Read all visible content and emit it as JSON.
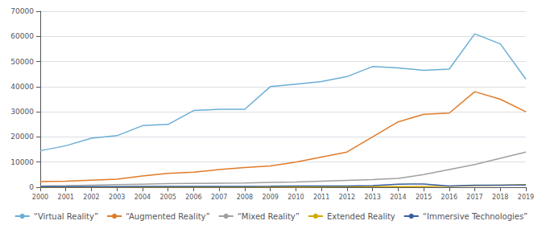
{
  "chart_data": {
    "type": "line",
    "x": [
      2000,
      2001,
      2002,
      2003,
      2004,
      2005,
      2006,
      2007,
      2008,
      2009,
      2010,
      2011,
      2012,
      2013,
      2014,
      2015,
      2016,
      2017,
      2018,
      2019
    ],
    "series": [
      {
        "name": "“Virtual Reality”",
        "color": "#6baed6",
        "values": [
          14500,
          16500,
          19500,
          20500,
          24500,
          25000,
          30500,
          31000,
          31000,
          40000,
          41000,
          42000,
          44000,
          48000,
          47500,
          46500,
          47000,
          61000,
          57000,
          43000
        ]
      },
      {
        "name": "“Augmented Reality”",
        "color": "#e07b28",
        "values": [
          2200,
          2400,
          2800,
          3200,
          4500,
          5500,
          6000,
          7000,
          7800,
          8500,
          10000,
          12000,
          14000,
          20000,
          26000,
          29000,
          29500,
          38000,
          35000,
          30000
        ]
      },
      {
        "name": "“Mixed Reality”",
        "color": "#a0a0a0",
        "values": [
          500,
          600,
          800,
          1000,
          1200,
          1400,
          1500,
          1600,
          1700,
          1900,
          2100,
          2400,
          2700,
          3000,
          3500,
          5000,
          7000,
          9000,
          11500,
          14000
        ]
      },
      {
        "name": "Extended Reality",
        "color": "#d4a800",
        "values": [
          100,
          100,
          100,
          100,
          100,
          100,
          100,
          100,
          100,
          100,
          100,
          150,
          200,
          200,
          200,
          300,
          400,
          600,
          800,
          1000
        ]
      },
      {
        "name": "“Immersive Technologies”",
        "color": "#3a5fa0",
        "values": [
          200,
          200,
          250,
          250,
          300,
          300,
          350,
          350,
          350,
          400,
          500,
          500,
          500,
          600,
          1200,
          1300,
          500,
          800,
          800,
          900
        ]
      }
    ],
    "xlim": [
      2000,
      2019
    ],
    "xticks": [
      2000,
      2001,
      2002,
      2003,
      2004,
      2005,
      2006,
      2007,
      2008,
      2009,
      2010,
      2011,
      2012,
      2013,
      2014,
      2015,
      2016,
      2017,
      2018,
      2019
    ],
    "ylim": [
      0,
      70000
    ],
    "yticks": [
      0,
      10000,
      20000,
      30000,
      40000,
      50000,
      60000,
      70000
    ],
    "grid": true,
    "legend": "bottom"
  }
}
